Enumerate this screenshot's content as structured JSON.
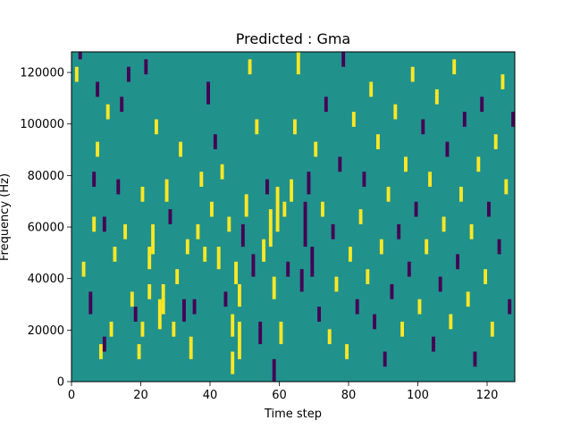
{
  "chart_data": {
    "type": "heatmap",
    "title": "Predicted : Gma",
    "xlabel": "Time step",
    "ylabel": "Frequency (Hz)",
    "xlim": [
      0,
      128
    ],
    "ylim": [
      0,
      128000
    ],
    "x_ticks": [
      0,
      20,
      40,
      60,
      80,
      100,
      120
    ],
    "x_tick_labels": [
      "0",
      "20",
      "40",
      "60",
      "80",
      "100",
      "120"
    ],
    "y_ticks": [
      0,
      20000,
      40000,
      60000,
      80000,
      100000,
      120000
    ],
    "y_tick_labels": [
      "0",
      "20000",
      "40000",
      "60000",
      "80000",
      "100000",
      "120000"
    ],
    "grid": false,
    "colormap": "viridis",
    "colors": {
      "background": "#21918c",
      "high": "#fde725",
      "low": "#440154"
    },
    "n_time_steps": 128,
    "n_freq_bins": 44,
    "freq_bin_width_hz": 2909,
    "cells_note": "each entry: [time_step, freq_bin_start, freq_bin_end_exclusive, level] where level 1 = high (yellow), -1 = low (purple)",
    "cells": [
      [
        1,
        40,
        42,
        1
      ],
      [
        2,
        43,
        44,
        -1
      ],
      [
        3,
        14,
        16,
        1
      ],
      [
        5,
        9,
        12,
        -1
      ],
      [
        6,
        20,
        22,
        1
      ],
      [
        6,
        26,
        28,
        -1
      ],
      [
        7,
        30,
        32,
        1
      ],
      [
        7,
        38,
        40,
        -1
      ],
      [
        8,
        3,
        5,
        1
      ],
      [
        9,
        4,
        6,
        -1
      ],
      [
        9,
        20,
        22,
        -1
      ],
      [
        10,
        35,
        37,
        1
      ],
      [
        11,
        6,
        8,
        1
      ],
      [
        12,
        16,
        18,
        1
      ],
      [
        13,
        25,
        27,
        -1
      ],
      [
        14,
        36,
        38,
        -1
      ],
      [
        15,
        19,
        21,
        1
      ],
      [
        16,
        40,
        42,
        -1
      ],
      [
        17,
        10,
        12,
        1
      ],
      [
        18,
        8,
        10,
        -1
      ],
      [
        19,
        3,
        5,
        1
      ],
      [
        20,
        24,
        26,
        1
      ],
      [
        20,
        6,
        8,
        1
      ],
      [
        21,
        41,
        43,
        -1
      ],
      [
        22,
        11,
        13,
        1
      ],
      [
        22,
        15,
        18,
        1
      ],
      [
        23,
        17,
        21,
        1
      ],
      [
        24,
        33,
        35,
        1
      ],
      [
        25,
        7,
        11,
        1
      ],
      [
        26,
        9,
        13,
        1
      ],
      [
        27,
        24,
        27,
        1
      ],
      [
        28,
        21,
        23,
        -1
      ],
      [
        29,
        6,
        8,
        1
      ],
      [
        30,
        13,
        15,
        1
      ],
      [
        31,
        30,
        32,
        1
      ],
      [
        32,
        8,
        11,
        -1
      ],
      [
        33,
        17,
        19,
        1
      ],
      [
        34,
        3,
        6,
        1
      ],
      [
        35,
        9,
        11,
        -1
      ],
      [
        36,
        19,
        21,
        1
      ],
      [
        37,
        26,
        28,
        1
      ],
      [
        38,
        16,
        18,
        1
      ],
      [
        39,
        37,
        40,
        -1
      ],
      [
        40,
        22,
        24,
        1
      ],
      [
        41,
        31,
        33,
        -1
      ],
      [
        42,
        15,
        18,
        1
      ],
      [
        43,
        27,
        29,
        1
      ],
      [
        44,
        10,
        12,
        -1
      ],
      [
        45,
        20,
        22,
        1
      ],
      [
        46,
        1,
        4,
        1
      ],
      [
        46,
        6,
        9,
        1
      ],
      [
        47,
        13,
        16,
        1
      ],
      [
        48,
        3,
        8,
        1
      ],
      [
        48,
        10,
        13,
        1
      ],
      [
        49,
        18,
        21,
        -1
      ],
      [
        50,
        22,
        25,
        1
      ],
      [
        51,
        41,
        43,
        1
      ],
      [
        52,
        14,
        17,
        -1
      ],
      [
        53,
        33,
        35,
        1
      ],
      [
        54,
        5,
        8,
        -1
      ],
      [
        55,
        16,
        19,
        1
      ],
      [
        56,
        25,
        27,
        -1
      ],
      [
        57,
        18,
        23,
        1
      ],
      [
        58,
        0,
        3,
        -1
      ],
      [
        58,
        11,
        14,
        1
      ],
      [
        59,
        20,
        26,
        1
      ],
      [
        60,
        5,
        8,
        1
      ],
      [
        61,
        22,
        24,
        1
      ],
      [
        62,
        14,
        16,
        -1
      ],
      [
        63,
        24,
        27,
        1
      ],
      [
        64,
        33,
        35,
        1
      ],
      [
        65,
        41,
        44,
        1
      ],
      [
        66,
        12,
        15,
        -1
      ],
      [
        67,
        18,
        24,
        -1
      ],
      [
        68,
        25,
        28,
        -1
      ],
      [
        69,
        14,
        18,
        -1
      ],
      [
        70,
        30,
        32,
        1
      ],
      [
        71,
        8,
        10,
        -1
      ],
      [
        72,
        22,
        24,
        1
      ],
      [
        73,
        36,
        38,
        -1
      ],
      [
        74,
        5,
        7,
        1
      ],
      [
        75,
        19,
        21,
        -1
      ],
      [
        76,
        12,
        14,
        1
      ],
      [
        77,
        28,
        30,
        -1
      ],
      [
        78,
        42,
        44,
        -1
      ],
      [
        79,
        3,
        5,
        1
      ],
      [
        80,
        16,
        18,
        1
      ],
      [
        81,
        34,
        36,
        1
      ],
      [
        82,
        9,
        11,
        -1
      ],
      [
        83,
        21,
        23,
        1
      ],
      [
        84,
        26,
        28,
        -1
      ],
      [
        85,
        13,
        15,
        1
      ],
      [
        86,
        38,
        40,
        1
      ],
      [
        87,
        7,
        9,
        -1
      ],
      [
        88,
        31,
        33,
        1
      ],
      [
        89,
        17,
        19,
        1
      ],
      [
        90,
        2,
        4,
        -1
      ],
      [
        91,
        24,
        26,
        1
      ],
      [
        92,
        11,
        13,
        -1
      ],
      [
        93,
        35,
        37,
        1
      ],
      [
        94,
        19,
        21,
        -1
      ],
      [
        95,
        6,
        8,
        1
      ],
      [
        96,
        28,
        30,
        1
      ],
      [
        97,
        14,
        16,
        -1
      ],
      [
        98,
        40,
        42,
        1
      ],
      [
        99,
        22,
        24,
        -1
      ],
      [
        100,
        9,
        11,
        1
      ],
      [
        101,
        33,
        35,
        -1
      ],
      [
        102,
        17,
        19,
        1
      ],
      [
        103,
        26,
        28,
        1
      ],
      [
        104,
        4,
        6,
        -1
      ],
      [
        105,
        37,
        39,
        1
      ],
      [
        106,
        12,
        14,
        -1
      ],
      [
        107,
        20,
        22,
        1
      ],
      [
        108,
        30,
        32,
        -1
      ],
      [
        109,
        7,
        9,
        1
      ],
      [
        110,
        41,
        43,
        1
      ],
      [
        111,
        15,
        17,
        -1
      ],
      [
        112,
        24,
        26,
        1
      ],
      [
        113,
        34,
        36,
        -1
      ],
      [
        114,
        10,
        12,
        1
      ],
      [
        115,
        19,
        21,
        1
      ],
      [
        116,
        2,
        4,
        -1
      ],
      [
        117,
        28,
        30,
        1
      ],
      [
        118,
        36,
        38,
        -1
      ],
      [
        119,
        13,
        15,
        1
      ],
      [
        120,
        22,
        24,
        -1
      ],
      [
        121,
        6,
        8,
        1
      ],
      [
        122,
        31,
        33,
        1
      ],
      [
        123,
        17,
        19,
        -1
      ],
      [
        124,
        39,
        41,
        1
      ],
      [
        125,
        25,
        27,
        1
      ],
      [
        126,
        9,
        11,
        -1
      ],
      [
        127,
        34,
        36,
        -1
      ]
    ]
  }
}
